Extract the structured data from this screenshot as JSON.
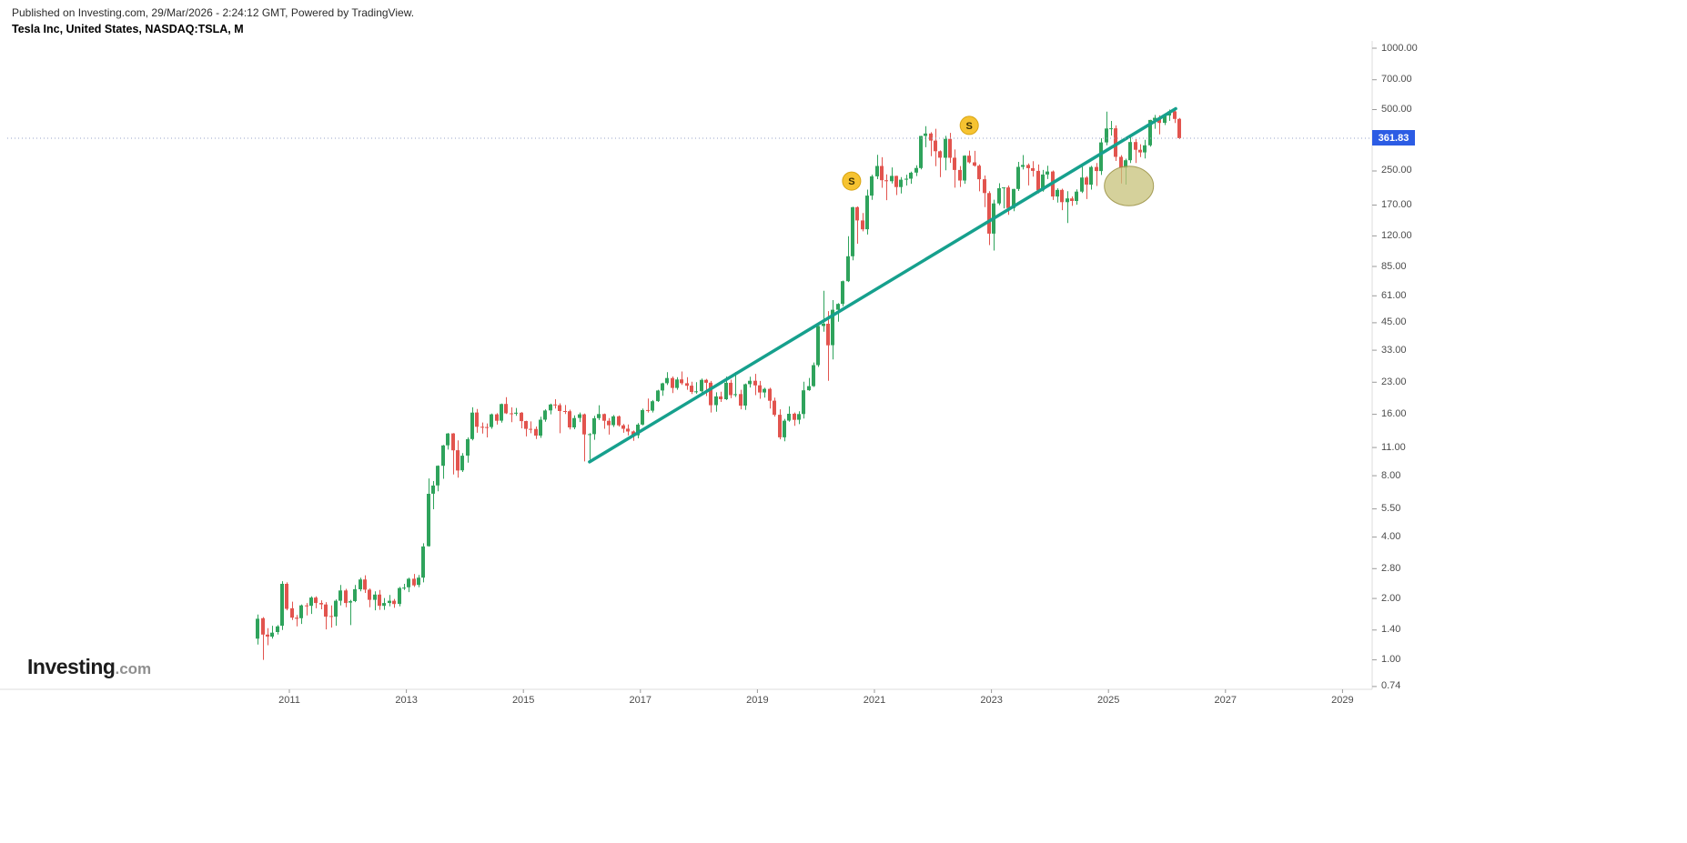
{
  "header": {
    "published_line": "Published on Investing.com, 29/Mar/2026 - 2:24:12 GMT, Powered by TradingView.",
    "instrument_line": "Tesla Inc, United States, NASDAQ:TSLA, M"
  },
  "watermark": {
    "brand": "Investing",
    "suffix": ".com"
  },
  "price_axis": {
    "ticks": [
      "1000.00",
      "700.00",
      "500.00",
      "250.00",
      "170.00",
      "120.00",
      "85.00",
      "61.00",
      "45.00",
      "33.00",
      "23.00",
      "16.00",
      "11.00",
      "8.00",
      "5.50",
      "4.00",
      "2.80",
      "2.00",
      "1.40",
      "1.00",
      "0.74"
    ],
    "last_price_label": "361.83"
  },
  "time_axis": {
    "ticks": [
      "2011",
      "2013",
      "2015",
      "2017",
      "2019",
      "2021",
      "2023",
      "2025",
      "2027",
      "2029"
    ]
  },
  "colors": {
    "up": "#2fa35c",
    "down": "#e2544e",
    "trendline": "#16a08d",
    "marker_fill": "#f6c331",
    "marker_border": "#d8a412",
    "marker_text": "#3d3000",
    "ellipse_fill": "rgba(199,193,121,0.75)",
    "ellipse_border": "rgba(152,142,64,0.85)",
    "last_price_line": "#97a3c9",
    "badge_bg": "#2c5ce4",
    "axis_line": "#dcdcdc",
    "tick": "#9a9a9a"
  },
  "chart_data": {
    "type": "candlestick",
    "title": "Tesla Inc, United States, NASDAQ:TSLA, M",
    "symbol": "NASDAQ:TSLA",
    "timeframe": "M",
    "scale": "log",
    "last_price": 361.83,
    "price_ticks": [
      1000,
      700,
      500,
      250,
      170,
      120,
      85,
      61,
      45,
      33,
      23,
      16,
      11,
      8,
      5.5,
      4,
      2.8,
      2,
      1.4,
      1,
      0.74
    ],
    "year_ticks": [
      2011,
      2013,
      2015,
      2017,
      2019,
      2021,
      2023,
      2025,
      2027,
      2029
    ],
    "start": {
      "year": 2010,
      "month": 6
    },
    "candles": [
      [
        1.27,
        1.67,
        1.19,
        1.59
      ],
      [
        1.6,
        1.62,
        1.0,
        1.33
      ],
      [
        1.33,
        1.43,
        1.18,
        1.3
      ],
      [
        1.3,
        1.47,
        1.27,
        1.36
      ],
      [
        1.37,
        1.48,
        1.33,
        1.46
      ],
      [
        1.47,
        2.43,
        1.4,
        2.36
      ],
      [
        2.36,
        2.4,
        1.75,
        1.78
      ],
      [
        1.79,
        1.93,
        1.57,
        1.61
      ],
      [
        1.61,
        1.66,
        1.46,
        1.59
      ],
      [
        1.6,
        1.87,
        1.5,
        1.85
      ],
      [
        1.85,
        1.9,
        1.65,
        1.84
      ],
      [
        1.84,
        2.05,
        1.68,
        2.02
      ],
      [
        2.02,
        2.05,
        1.79,
        1.9
      ],
      [
        1.9,
        1.96,
        1.77,
        1.87
      ],
      [
        1.87,
        1.92,
        1.41,
        1.63
      ],
      [
        1.64,
        1.85,
        1.44,
        1.63
      ],
      [
        1.63,
        1.98,
        1.47,
        1.95
      ],
      [
        1.95,
        2.33,
        1.85,
        2.19
      ],
      [
        2.19,
        2.23,
        1.81,
        1.9
      ],
      [
        1.91,
        1.97,
        1.48,
        1.94
      ],
      [
        1.94,
        2.33,
        1.92,
        2.22
      ],
      [
        2.22,
        2.53,
        2.17,
        2.48
      ],
      [
        2.48,
        2.6,
        2.13,
        2.21
      ],
      [
        2.21,
        2.24,
        1.81,
        1.97
      ],
      [
        1.97,
        2.17,
        1.75,
        2.09
      ],
      [
        2.09,
        2.2,
        1.76,
        1.84
      ],
      [
        1.84,
        2.01,
        1.76,
        1.9
      ],
      [
        1.9,
        2.08,
        1.83,
        1.95
      ],
      [
        1.95,
        1.99,
        1.8,
        1.88
      ],
      [
        1.88,
        2.28,
        1.83,
        2.25
      ],
      [
        2.25,
        2.36,
        2.2,
        2.26
      ],
      [
        2.27,
        2.53,
        2.15,
        2.5
      ],
      [
        2.5,
        2.64,
        2.28,
        2.32
      ],
      [
        2.33,
        2.61,
        2.27,
        2.53
      ],
      [
        2.53,
        3.73,
        2.4,
        3.6
      ],
      [
        3.61,
        7.76,
        3.59,
        6.52
      ],
      [
        6.53,
        7.53,
        5.48,
        7.16
      ],
      [
        7.17,
        9.0,
        6.71,
        8.95
      ],
      [
        8.95,
        11.33,
        7.73,
        11.27
      ],
      [
        11.28,
        12.97,
        10.75,
        12.89
      ],
      [
        12.9,
        12.95,
        8.11,
        10.66
      ],
      [
        10.67,
        11.93,
        7.82,
        8.49
      ],
      [
        8.5,
        10.33,
        8.35,
        10.03
      ],
      [
        10.04,
        12.33,
        9.27,
        12.09
      ],
      [
        12.1,
        17.33,
        11.92,
        16.32
      ],
      [
        16.33,
        17.0,
        13.0,
        13.9
      ],
      [
        13.9,
        14.6,
        12.89,
        13.86
      ],
      [
        13.86,
        14.45,
        12.33,
        13.85
      ],
      [
        13.86,
        16.13,
        13.6,
        16.0
      ],
      [
        16.01,
        16.21,
        14.25,
        14.89
      ],
      [
        14.9,
        18.09,
        14.58,
        17.98
      ],
      [
        17.99,
        19.43,
        16.05,
        16.18
      ],
      [
        16.18,
        17.33,
        14.65,
        16.11
      ],
      [
        16.12,
        17.2,
        15.73,
        16.3
      ],
      [
        16.31,
        16.42,
        13.67,
        14.83
      ],
      [
        14.83,
        14.9,
        12.47,
        13.57
      ],
      [
        13.58,
        14.77,
        12.93,
        13.56
      ],
      [
        13.56,
        13.95,
        12.11,
        12.58
      ],
      [
        12.59,
        15.57,
        12.27,
        15.07
      ],
      [
        15.07,
        16.93,
        14.73,
        16.72
      ],
      [
        16.73,
        18.05,
        16.0,
        17.88
      ],
      [
        17.89,
        18.99,
        17.07,
        17.74
      ],
      [
        17.75,
        18.13,
        12.93,
        16.6
      ],
      [
        16.61,
        17.77,
        16.07,
        16.56
      ],
      [
        16.57,
        16.87,
        13.48,
        13.8
      ],
      [
        13.81,
        15.83,
        13.53,
        15.35
      ],
      [
        15.36,
        16.33,
        14.67,
        16.0
      ],
      [
        16.0,
        16.13,
        9.4,
        12.75
      ],
      [
        12.75,
        12.95,
        9.6,
        12.8
      ],
      [
        12.8,
        15.73,
        12.0,
        15.32
      ],
      [
        15.33,
        17.73,
        15.0,
        16.05
      ],
      [
        16.05,
        16.16,
        13.6,
        14.88
      ],
      [
        14.88,
        15.33,
        12.73,
        14.15
      ],
      [
        14.16,
        15.87,
        13.87,
        15.65
      ],
      [
        15.65,
        15.8,
        13.93,
        14.13
      ],
      [
        14.14,
        14.35,
        13.0,
        13.6
      ],
      [
        13.61,
        14.27,
        12.6,
        13.18
      ],
      [
        13.19,
        13.33,
        11.87,
        12.63
      ],
      [
        12.63,
        14.5,
        12.2,
        14.25
      ],
      [
        14.25,
        17.07,
        14.13,
        16.8
      ],
      [
        16.8,
        19.13,
        16.33,
        16.67
      ],
      [
        16.67,
        18.8,
        16.33,
        18.55
      ],
      [
        18.56,
        21.13,
        18.4,
        20.94
      ],
      [
        20.95,
        22.87,
        19.73,
        22.73
      ],
      [
        22.74,
        25.77,
        22.27,
        24.11
      ],
      [
        24.12,
        24.53,
        20.33,
        21.56
      ],
      [
        21.57,
        24.33,
        21.13,
        23.73
      ],
      [
        23.74,
        25.97,
        22.33,
        22.74
      ],
      [
        22.75,
        24.33,
        21.13,
        22.1
      ],
      [
        22.11,
        23.13,
        20.13,
        20.59
      ],
      [
        20.6,
        23.0,
        20.2,
        20.76
      ],
      [
        20.77,
        24.0,
        20.33,
        23.62
      ],
      [
        23.63,
        23.9,
        19.67,
        22.87
      ],
      [
        22.88,
        23.33,
        16.33,
        17.74
      ],
      [
        17.75,
        20.53,
        16.47,
        19.59
      ],
      [
        19.6,
        20.67,
        18.4,
        18.98
      ],
      [
        18.99,
        24.5,
        18.8,
        22.86
      ],
      [
        22.87,
        23.67,
        19.2,
        19.88
      ],
      [
        19.89,
        25.83,
        19.47,
        20.11
      ],
      [
        20.12,
        21.13,
        16.93,
        17.65
      ],
      [
        17.66,
        22.67,
        16.82,
        22.49
      ],
      [
        22.5,
        24.47,
        21.67,
        23.37
      ],
      [
        23.38,
        25.27,
        19.87,
        22.19
      ],
      [
        22.2,
        23.33,
        19.07,
        20.47
      ],
      [
        20.48,
        21.6,
        19.33,
        21.33
      ],
      [
        21.34,
        21.6,
        17.07,
        18.66
      ],
      [
        18.67,
        19.33,
        15.6,
        15.91
      ],
      [
        15.92,
        16.93,
        12.07,
        12.34
      ],
      [
        12.35,
        15.2,
        11.8,
        14.9
      ],
      [
        14.91,
        17.53,
        14.73,
        16.11
      ],
      [
        16.12,
        16.33,
        14.07,
        15.04
      ],
      [
        15.05,
        16.57,
        14.33,
        16.06
      ],
      [
        16.07,
        23.13,
        15.27,
        21.0
      ],
      [
        21.01,
        24.13,
        20.87,
        22.0
      ],
      [
        22.01,
        28.73,
        21.8,
        27.89
      ],
      [
        27.9,
        43.53,
        27.33,
        43.37
      ],
      [
        43.38,
        64.6,
        40.67,
        44.53
      ],
      [
        44.54,
        51.33,
        23.37,
        34.93
      ],
      [
        34.94,
        58.13,
        29.76,
        52.13
      ],
      [
        52.14,
        56.13,
        45.54,
        55.67
      ],
      [
        55.68,
        72.51,
        54.27,
        71.99
      ],
      [
        72.0,
        119.67,
        71.33,
        95.38
      ],
      [
        95.39,
        166.71,
        91.1,
        166.11
      ],
      [
        166.12,
        167.5,
        109.96,
        143.0
      ],
      [
        143.01,
        155.3,
        126.37,
        129.35
      ],
      [
        129.36,
        202.6,
        121.87,
        189.2
      ],
      [
        189.21,
        239.57,
        180.4,
        235.22
      ],
      [
        235.23,
        300.13,
        228.0,
        264.51
      ],
      [
        264.52,
        292.0,
        206.67,
        225.17
      ],
      [
        225.18,
        240.37,
        179.83,
        222.64
      ],
      [
        222.65,
        260.26,
        217.0,
        236.48
      ],
      [
        236.48,
        236.67,
        190.41,
        208.41
      ],
      [
        208.41,
        233.33,
        194.0,
        226.57
      ],
      [
        226.57,
        239.67,
        212.0,
        229.07
      ],
      [
        229.07,
        248.0,
        216.28,
        245.24
      ],
      [
        245.24,
        266.67,
        236.0,
        258.49
      ],
      [
        258.49,
        371.74,
        254.53,
        371.33
      ],
      [
        371.34,
        414.5,
        326.67,
        381.59
      ],
      [
        381.59,
        387.33,
        295.33,
        352.26
      ],
      [
        352.26,
        402.67,
        264.0,
        312.24
      ],
      [
        312.24,
        315.33,
        233.33,
        290.14
      ],
      [
        290.14,
        371.59,
        252.01,
        359.2
      ],
      [
        359.2,
        384.29,
        273.9,
        290.25
      ],
      [
        290.25,
        318.5,
        206.86,
        252.75
      ],
      [
        252.75,
        264.21,
        208.69,
        224.47
      ],
      [
        224.47,
        298.32,
        216.17,
        297.15
      ],
      [
        297.15,
        314.67,
        271.81,
        275.61
      ],
      [
        275.61,
        313.8,
        262.47,
        265.25
      ],
      [
        265.25,
        269.0,
        198.59,
        227.54
      ],
      [
        227.54,
        237.4,
        166.19,
        194.7
      ],
      [
        194.7,
        198.92,
        108.24,
        123.18
      ],
      [
        123.19,
        180.68,
        101.81,
        173.22
      ],
      [
        173.22,
        217.65,
        169.93,
        205.71
      ],
      [
        205.71,
        207.79,
        163.91,
        207.46
      ],
      [
        207.46,
        212.0,
        152.37,
        164.31
      ],
      [
        164.31,
        204.48,
        158.83,
        203.93
      ],
      [
        203.93,
        276.99,
        199.37,
        261.77
      ],
      [
        261.77,
        299.29,
        254.12,
        267.43
      ],
      [
        267.43,
        272.0,
        212.36,
        258.08
      ],
      [
        258.08,
        278.98,
        234.58,
        250.22
      ],
      [
        250.22,
        268.94,
        194.07,
        200.84
      ],
      [
        200.84,
        252.75,
        197.85,
        240.08
      ],
      [
        240.08,
        265.13,
        228.2,
        248.48
      ],
      [
        248.49,
        251.25,
        180.06,
        187.29
      ],
      [
        187.29,
        205.6,
        175.01,
        201.88
      ],
      [
        201.88,
        204.52,
        160.51,
        175.79
      ],
      [
        175.79,
        198.87,
        138.8,
        183.28
      ],
      [
        183.28,
        187.56,
        168.49,
        178.08
      ],
      [
        178.08,
        203.2,
        170.8,
        197.88
      ],
      [
        197.88,
        271.0,
        194.67,
        232.07
      ],
      [
        232.07,
        235.49,
        182.0,
        214.11
      ],
      [
        214.11,
        264.86,
        202.59,
        261.63
      ],
      [
        261.63,
        273.54,
        211.03,
        249.85
      ],
      [
        249.85,
        361.93,
        238.88,
        345.16
      ],
      [
        345.16,
        488.54,
        334.34,
        403.84
      ],
      [
        403.85,
        439.74,
        373.04,
        404.6
      ],
      [
        404.6,
        418.0,
        279.76,
        292.98
      ],
      [
        292.98,
        299.0,
        217.02,
        259.16
      ],
      [
        259.16,
        287.2,
        214.25,
        282.16
      ],
      [
        282.16,
        367.71,
        273.21,
        346.46
      ],
      [
        346.46,
        358.0,
        273.21,
        317.66
      ],
      [
        317.66,
        338.0,
        292.47,
        308.27
      ],
      [
        308.27,
        355.0,
        287.64,
        333.87
      ],
      [
        333.87,
        444.98,
        329.31,
        444.72
      ],
      [
        444.72,
        470.75,
        402.43,
        456.0
      ],
      [
        456.0,
        468.0,
        378.0,
        430.0
      ],
      [
        430.0,
        475.0,
        420.0,
        468.0
      ],
      [
        468.0,
        500.0,
        440.0,
        490.0
      ],
      [
        490.0,
        495.0,
        430.0,
        450.0
      ],
      [
        450.0,
        455.0,
        358.0,
        361.83
      ]
    ],
    "trendline": {
      "from": {
        "year": 2016.13,
        "price": 9.35
      },
      "to": {
        "year": 2026.15,
        "price": 505
      }
    },
    "markers": [
      {
        "label": "S",
        "year": 2020.61,
        "price": 223
      },
      {
        "label": "S",
        "year": 2022.62,
        "price": 418
      }
    ],
    "ellipse": {
      "year": 2025.35,
      "price": 211,
      "rx_years": 0.42,
      "ry_price_factor": 1.25
    }
  }
}
